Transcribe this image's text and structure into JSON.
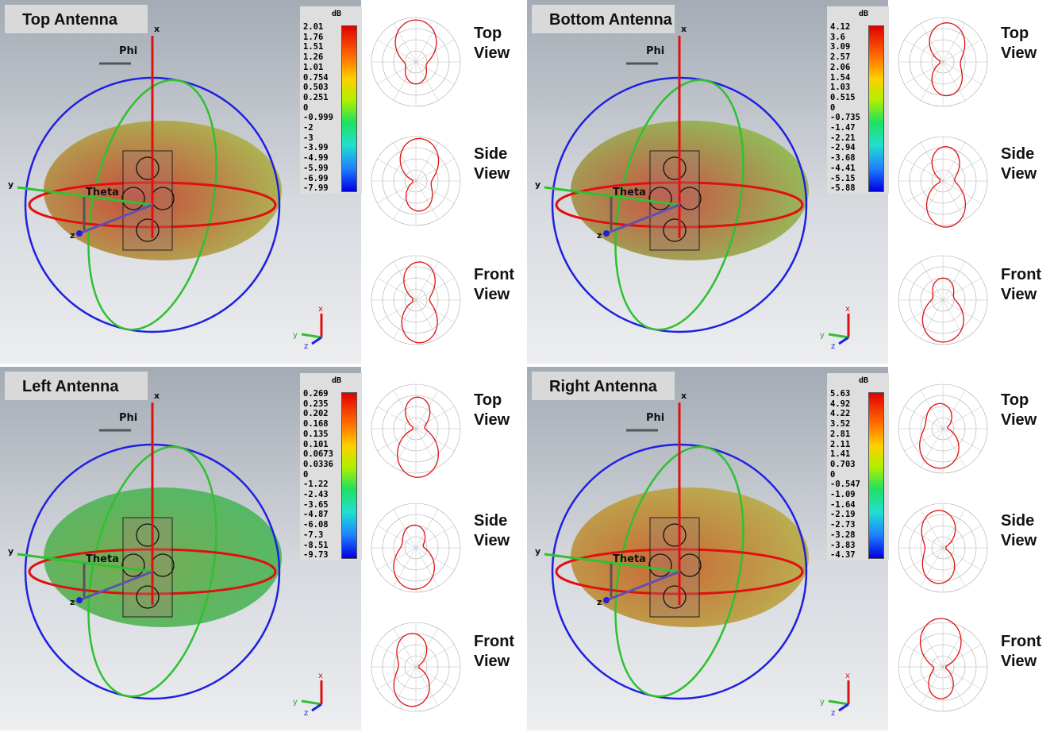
{
  "panels": [
    {
      "title": "Top Antenna",
      "unit": "dB",
      "scale": [
        "2.01",
        "1.76",
        "1.51",
        "1.26",
        "1.01",
        "0.754",
        "0.503",
        "0.251",
        "0",
        "-0.999",
        "-2",
        "-3",
        "-3.99",
        "-4.99",
        "-5.99",
        "-6.99",
        "-7.99"
      ],
      "views": [
        "Top View",
        "Side View",
        "Front View"
      ],
      "axes": {
        "phi": "Phi",
        "theta": "Theta",
        "x": "x",
        "y": "y",
        "z": "z"
      },
      "blob_colors": [
        "#c84030",
        "#a8b84a"
      ]
    },
    {
      "title": "Bottom Antenna",
      "unit": "dB",
      "scale": [
        "4.12",
        "3.6",
        "3.09",
        "2.57",
        "2.06",
        "1.54",
        "1.03",
        "0.515",
        "0",
        "-0.735",
        "-1.47",
        "-2.21",
        "-2.94",
        "-3.68",
        "-4.41",
        "-5.15",
        "-5.88"
      ],
      "views": [
        "Top View",
        "Side View",
        "Front View"
      ],
      "axes": {
        "phi": "Phi",
        "theta": "Theta",
        "x": "x",
        "y": "y",
        "z": "z"
      },
      "blob_colors": [
        "#c8483a",
        "#8cc050"
      ]
    },
    {
      "title": "Left Antenna",
      "unit": "dB",
      "scale": [
        "0.269",
        "0.235",
        "0.202",
        "0.168",
        "0.135",
        "0.101",
        "0.0673",
        "0.0336",
        "0",
        "-1.22",
        "-2.43",
        "-3.65",
        "-4.87",
        "-6.08",
        "-7.3",
        "-8.51",
        "-9.73"
      ],
      "views": [
        "Top View",
        "Side View",
        "Front View"
      ],
      "axes": {
        "phi": "Phi",
        "theta": "Theta",
        "x": "x",
        "y": "y",
        "z": "z"
      },
      "blob_colors": [
        "#70a848",
        "#4ab860"
      ]
    },
    {
      "title": "Right Antenna",
      "unit": "dB",
      "scale": [
        "5.63",
        "4.92",
        "4.22",
        "3.52",
        "2.81",
        "2.11",
        "1.41",
        "0.703",
        "0",
        "-0.547",
        "-1.09",
        "-1.64",
        "-2.19",
        "-2.73",
        "-3.28",
        "-3.83",
        "-4.37"
      ],
      "views": [
        "Top View",
        "Side View",
        "Front View"
      ],
      "axes": {
        "phi": "Phi",
        "theta": "Theta",
        "x": "x",
        "y": "y",
        "z": "z"
      },
      "blob_colors": [
        "#c8602a",
        "#b8b048"
      ]
    }
  ]
}
